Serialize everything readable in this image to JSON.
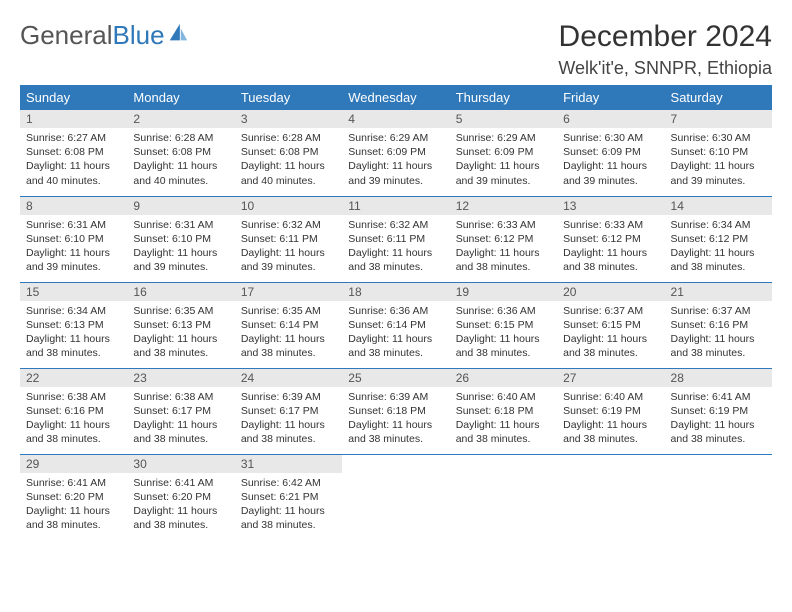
{
  "brand": {
    "name1": "General",
    "name2": "Blue"
  },
  "title": "December 2024",
  "location": "Welk'it'e, SNNPR, Ethiopia",
  "colors": {
    "accent": "#2f78b9",
    "header_bg": "#2f78b9",
    "header_text": "#ffffff",
    "daynum_bg": "#e8e8e8",
    "text": "#333333",
    "background": "#ffffff"
  },
  "typography": {
    "title_fontsize": 30,
    "location_fontsize": 18,
    "dayhead_fontsize": 13,
    "cell_fontsize": 10.5
  },
  "layout": {
    "columns": 7,
    "rows": 5
  },
  "weekdays": [
    "Sunday",
    "Monday",
    "Tuesday",
    "Wednesday",
    "Thursday",
    "Friday",
    "Saturday"
  ],
  "sunrise_label": "Sunrise:",
  "sunset_label": "Sunset:",
  "daylight_label": "Daylight:",
  "days": [
    {
      "n": "1",
      "sunrise": "6:27 AM",
      "sunset": "6:08 PM",
      "daylight": "11 hours and 40 minutes."
    },
    {
      "n": "2",
      "sunrise": "6:28 AM",
      "sunset": "6:08 PM",
      "daylight": "11 hours and 40 minutes."
    },
    {
      "n": "3",
      "sunrise": "6:28 AM",
      "sunset": "6:08 PM",
      "daylight": "11 hours and 40 minutes."
    },
    {
      "n": "4",
      "sunrise": "6:29 AM",
      "sunset": "6:09 PM",
      "daylight": "11 hours and 39 minutes."
    },
    {
      "n": "5",
      "sunrise": "6:29 AM",
      "sunset": "6:09 PM",
      "daylight": "11 hours and 39 minutes."
    },
    {
      "n": "6",
      "sunrise": "6:30 AM",
      "sunset": "6:09 PM",
      "daylight": "11 hours and 39 minutes."
    },
    {
      "n": "7",
      "sunrise": "6:30 AM",
      "sunset": "6:10 PM",
      "daylight": "11 hours and 39 minutes."
    },
    {
      "n": "8",
      "sunrise": "6:31 AM",
      "sunset": "6:10 PM",
      "daylight": "11 hours and 39 minutes."
    },
    {
      "n": "9",
      "sunrise": "6:31 AM",
      "sunset": "6:10 PM",
      "daylight": "11 hours and 39 minutes."
    },
    {
      "n": "10",
      "sunrise": "6:32 AM",
      "sunset": "6:11 PM",
      "daylight": "11 hours and 39 minutes."
    },
    {
      "n": "11",
      "sunrise": "6:32 AM",
      "sunset": "6:11 PM",
      "daylight": "11 hours and 38 minutes."
    },
    {
      "n": "12",
      "sunrise": "6:33 AM",
      "sunset": "6:12 PM",
      "daylight": "11 hours and 38 minutes."
    },
    {
      "n": "13",
      "sunrise": "6:33 AM",
      "sunset": "6:12 PM",
      "daylight": "11 hours and 38 minutes."
    },
    {
      "n": "14",
      "sunrise": "6:34 AM",
      "sunset": "6:12 PM",
      "daylight": "11 hours and 38 minutes."
    },
    {
      "n": "15",
      "sunrise": "6:34 AM",
      "sunset": "6:13 PM",
      "daylight": "11 hours and 38 minutes."
    },
    {
      "n": "16",
      "sunrise": "6:35 AM",
      "sunset": "6:13 PM",
      "daylight": "11 hours and 38 minutes."
    },
    {
      "n": "17",
      "sunrise": "6:35 AM",
      "sunset": "6:14 PM",
      "daylight": "11 hours and 38 minutes."
    },
    {
      "n": "18",
      "sunrise": "6:36 AM",
      "sunset": "6:14 PM",
      "daylight": "11 hours and 38 minutes."
    },
    {
      "n": "19",
      "sunrise": "6:36 AM",
      "sunset": "6:15 PM",
      "daylight": "11 hours and 38 minutes."
    },
    {
      "n": "20",
      "sunrise": "6:37 AM",
      "sunset": "6:15 PM",
      "daylight": "11 hours and 38 minutes."
    },
    {
      "n": "21",
      "sunrise": "6:37 AM",
      "sunset": "6:16 PM",
      "daylight": "11 hours and 38 minutes."
    },
    {
      "n": "22",
      "sunrise": "6:38 AM",
      "sunset": "6:16 PM",
      "daylight": "11 hours and 38 minutes."
    },
    {
      "n": "23",
      "sunrise": "6:38 AM",
      "sunset": "6:17 PM",
      "daylight": "11 hours and 38 minutes."
    },
    {
      "n": "24",
      "sunrise": "6:39 AM",
      "sunset": "6:17 PM",
      "daylight": "11 hours and 38 minutes."
    },
    {
      "n": "25",
      "sunrise": "6:39 AM",
      "sunset": "6:18 PM",
      "daylight": "11 hours and 38 minutes."
    },
    {
      "n": "26",
      "sunrise": "6:40 AM",
      "sunset": "6:18 PM",
      "daylight": "11 hours and 38 minutes."
    },
    {
      "n": "27",
      "sunrise": "6:40 AM",
      "sunset": "6:19 PM",
      "daylight": "11 hours and 38 minutes."
    },
    {
      "n": "28",
      "sunrise": "6:41 AM",
      "sunset": "6:19 PM",
      "daylight": "11 hours and 38 minutes."
    },
    {
      "n": "29",
      "sunrise": "6:41 AM",
      "sunset": "6:20 PM",
      "daylight": "11 hours and 38 minutes."
    },
    {
      "n": "30",
      "sunrise": "6:41 AM",
      "sunset": "6:20 PM",
      "daylight": "11 hours and 38 minutes."
    },
    {
      "n": "31",
      "sunrise": "6:42 AM",
      "sunset": "6:21 PM",
      "daylight": "11 hours and 38 minutes."
    }
  ]
}
